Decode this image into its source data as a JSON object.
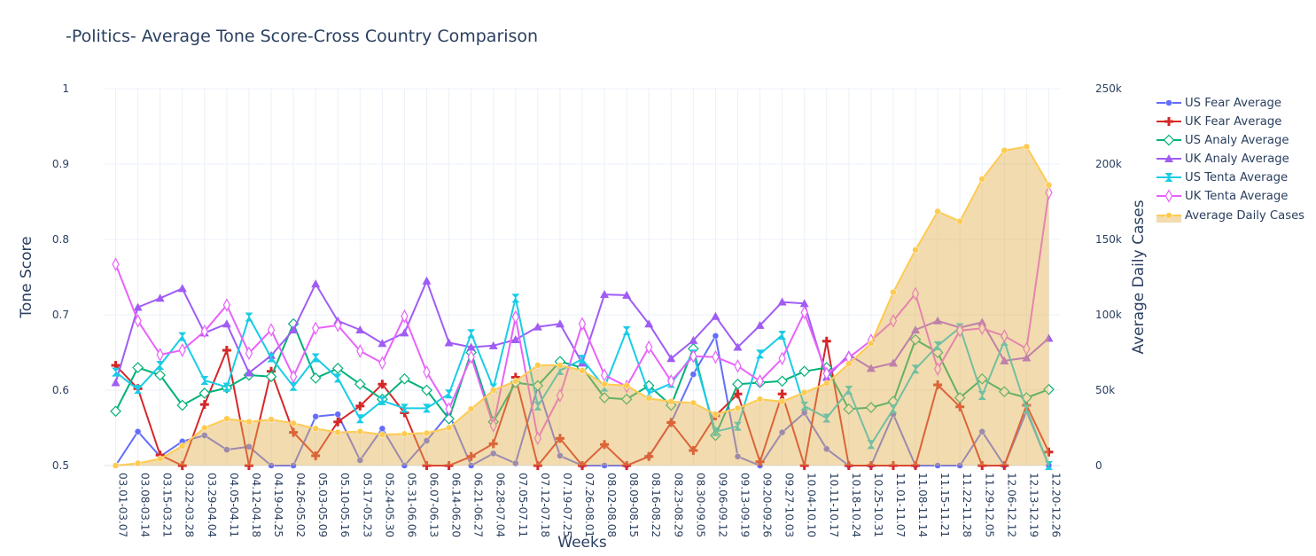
{
  "chart_data": {
    "type": "line",
    "title": "-Politics- Average Tone Score-Cross Country Comparison",
    "xlabel": "Weeks",
    "ylabel": "Tone Score",
    "y2label": "Average Daily Cases",
    "ylim": [
      0.5,
      1
    ],
    "y2lim": [
      0,
      250000
    ],
    "yticks": [
      "0.5",
      "0.6",
      "0.7",
      "0.8",
      "0.9",
      "1"
    ],
    "y2ticks": [
      "0",
      "50k",
      "100k",
      "150k",
      "200k",
      "250k"
    ],
    "grid": true,
    "legend_position": "top-right",
    "categories": [
      "03.01-03.07",
      "03.08-03.14",
      "03.15-03.21",
      "03.22-03.28",
      "03.29-04.04",
      "04.05-04.11",
      "04.12-04.18",
      "04.19-04.25",
      "04.26-05.02",
      "05.03-05.09",
      "05.10-05.16",
      "05.17-05.23",
      "05.24-05.30",
      "05.31-06.06",
      "06.07-06.13",
      "06.14-06.20",
      "06.21-06.27",
      "06.28-07.04",
      "07.05-07.11",
      "07.12-07.18",
      "07.19-07.25",
      "07.26-08.01",
      "08.02-08.08",
      "08.09-08.15",
      "08.16-08.22",
      "08.23-08.29",
      "08.30-09.05",
      "09.06-09.12",
      "09.13-09.19",
      "09.20-09.26",
      "09.27-10.03",
      "10.04-10.10",
      "10.11-10.17",
      "10.18-10.24",
      "10.25-10.31",
      "11.01-11.07",
      "11.08-11.14",
      "11.15-11.21",
      "11.22-11.28",
      "11.29-12.05",
      "12.06-12.12",
      "12.13-12.19",
      "12.20-12.26"
    ],
    "series": [
      {
        "name": "US Fear Average",
        "color": "#636efa",
        "marker": "circle",
        "axis": "y1",
        "values": [
          0.5,
          0.545,
          0.512,
          0.532,
          0.54,
          0.521,
          0.525,
          0.5,
          0.5,
          0.565,
          0.568,
          0.507,
          0.549,
          0.5,
          0.533,
          0.569,
          0.5,
          0.516,
          0.503,
          0.605,
          0.513,
          0.5,
          0.5,
          0.5,
          0.512,
          0.557,
          0.621,
          0.672,
          0.512,
          0.5,
          0.544,
          0.57,
          0.522,
          0.5,
          0.5,
          0.568,
          0.5,
          0.5,
          0.5,
          0.545,
          0.5,
          0.572,
          0.5
        ]
      },
      {
        "name": "UK Fear Average",
        "color": "#d62728",
        "marker": "plus",
        "axis": "y1",
        "values": [
          0.633,
          0.602,
          0.514,
          0.5,
          0.581,
          0.653,
          0.5,
          0.625,
          0.544,
          0.513,
          0.558,
          0.579,
          0.608,
          0.57,
          0.5,
          0.5,
          0.512,
          0.529,
          0.617,
          0.5,
          0.536,
          0.5,
          0.528,
          0.5,
          0.512,
          0.557,
          0.52,
          0.566,
          0.595,
          0.505,
          0.595,
          0.5,
          0.665,
          0.5,
          0.5,
          0.5,
          0.5,
          0.607,
          0.578,
          0.5,
          0.5,
          0.58,
          0.518
        ]
      },
      {
        "name": "US Analy Average",
        "color": "#00b179",
        "marker": "diamond-open",
        "axis": "y1",
        "values": [
          0.572,
          0.63,
          0.62,
          0.58,
          0.596,
          0.603,
          0.62,
          0.618,
          0.688,
          0.616,
          0.629,
          0.608,
          0.588,
          0.615,
          0.6,
          0.562,
          0.65,
          0.558,
          0.61,
          0.606,
          0.638,
          0.63,
          0.59,
          0.588,
          0.606,
          0.58,
          0.655,
          0.54,
          0.608,
          0.61,
          0.612,
          0.625,
          0.63,
          0.575,
          0.577,
          0.585,
          0.667,
          0.65,
          0.59,
          0.615,
          0.598,
          0.59,
          0.601
        ]
      },
      {
        "name": "UK Analy Average",
        "color": "#a05cf5",
        "marker": "triangle-up",
        "axis": "y1",
        "values": [
          0.61,
          0.71,
          0.722,
          0.735,
          0.676,
          0.688,
          0.623,
          0.646,
          0.68,
          0.741,
          0.692,
          0.68,
          0.662,
          0.676,
          0.745,
          0.663,
          0.657,
          0.659,
          0.667,
          0.684,
          0.688,
          0.636,
          0.727,
          0.726,
          0.688,
          0.642,
          0.666,
          0.698,
          0.657,
          0.686,
          0.717,
          0.715,
          0.617,
          0.647,
          0.629,
          0.636,
          0.68,
          0.692,
          0.683,
          0.69,
          0.639,
          0.643,
          0.669
        ]
      },
      {
        "name": "US Tenta Average",
        "color": "#19cce6",
        "marker": "hourglass",
        "axis": "y1",
        "values": [
          0.624,
          0.601,
          0.633,
          0.671,
          0.613,
          0.604,
          0.697,
          0.643,
          0.605,
          0.643,
          0.616,
          0.562,
          0.586,
          0.576,
          0.576,
          0.595,
          0.675,
          0.603,
          0.722,
          0.579,
          0.626,
          0.641,
          0.604,
          0.679,
          0.596,
          0.609,
          0.648,
          0.545,
          0.552,
          0.648,
          0.673,
          0.579,
          0.563,
          0.6,
          0.528,
          0.575,
          0.628,
          0.659,
          0.683,
          0.593,
          0.665,
          0.575,
          0.5
        ]
      },
      {
        "name": "UK Tenta Average",
        "color": "#e763fa",
        "marker": "thin-diamond-open",
        "axis": "y1",
        "values": [
          0.767,
          0.692,
          0.647,
          0.653,
          0.678,
          0.713,
          0.649,
          0.68,
          0.618,
          0.682,
          0.686,
          0.652,
          0.636,
          0.698,
          0.624,
          0.575,
          0.644,
          0.553,
          0.697,
          0.536,
          0.593,
          0.688,
          0.62,
          0.605,
          0.657,
          0.612,
          0.645,
          0.644,
          0.632,
          0.612,
          0.642,
          0.703,
          0.622,
          0.643,
          0.666,
          0.692,
          0.728,
          0.628,
          0.679,
          0.682,
          0.672,
          0.655,
          0.862
        ]
      },
      {
        "name": "Average Daily Cases",
        "color": "#fecb52",
        "marker": "circle",
        "axis": "y2",
        "fill": "tozeroy",
        "values": [
          0,
          1500,
          4500,
          13000,
          25000,
          31000,
          29000,
          30500,
          28000,
          24500,
          22000,
          22500,
          20500,
          21000,
          21500,
          25000,
          37500,
          50000,
          56000,
          66500,
          66500,
          63000,
          54000,
          53000,
          44500,
          42500,
          41500,
          34000,
          38000,
          44000,
          42500,
          48500,
          54500,
          67500,
          81000,
          115000,
          143000,
          168500,
          162000,
          190000,
          209000,
          211500,
          186000
        ]
      }
    ]
  }
}
